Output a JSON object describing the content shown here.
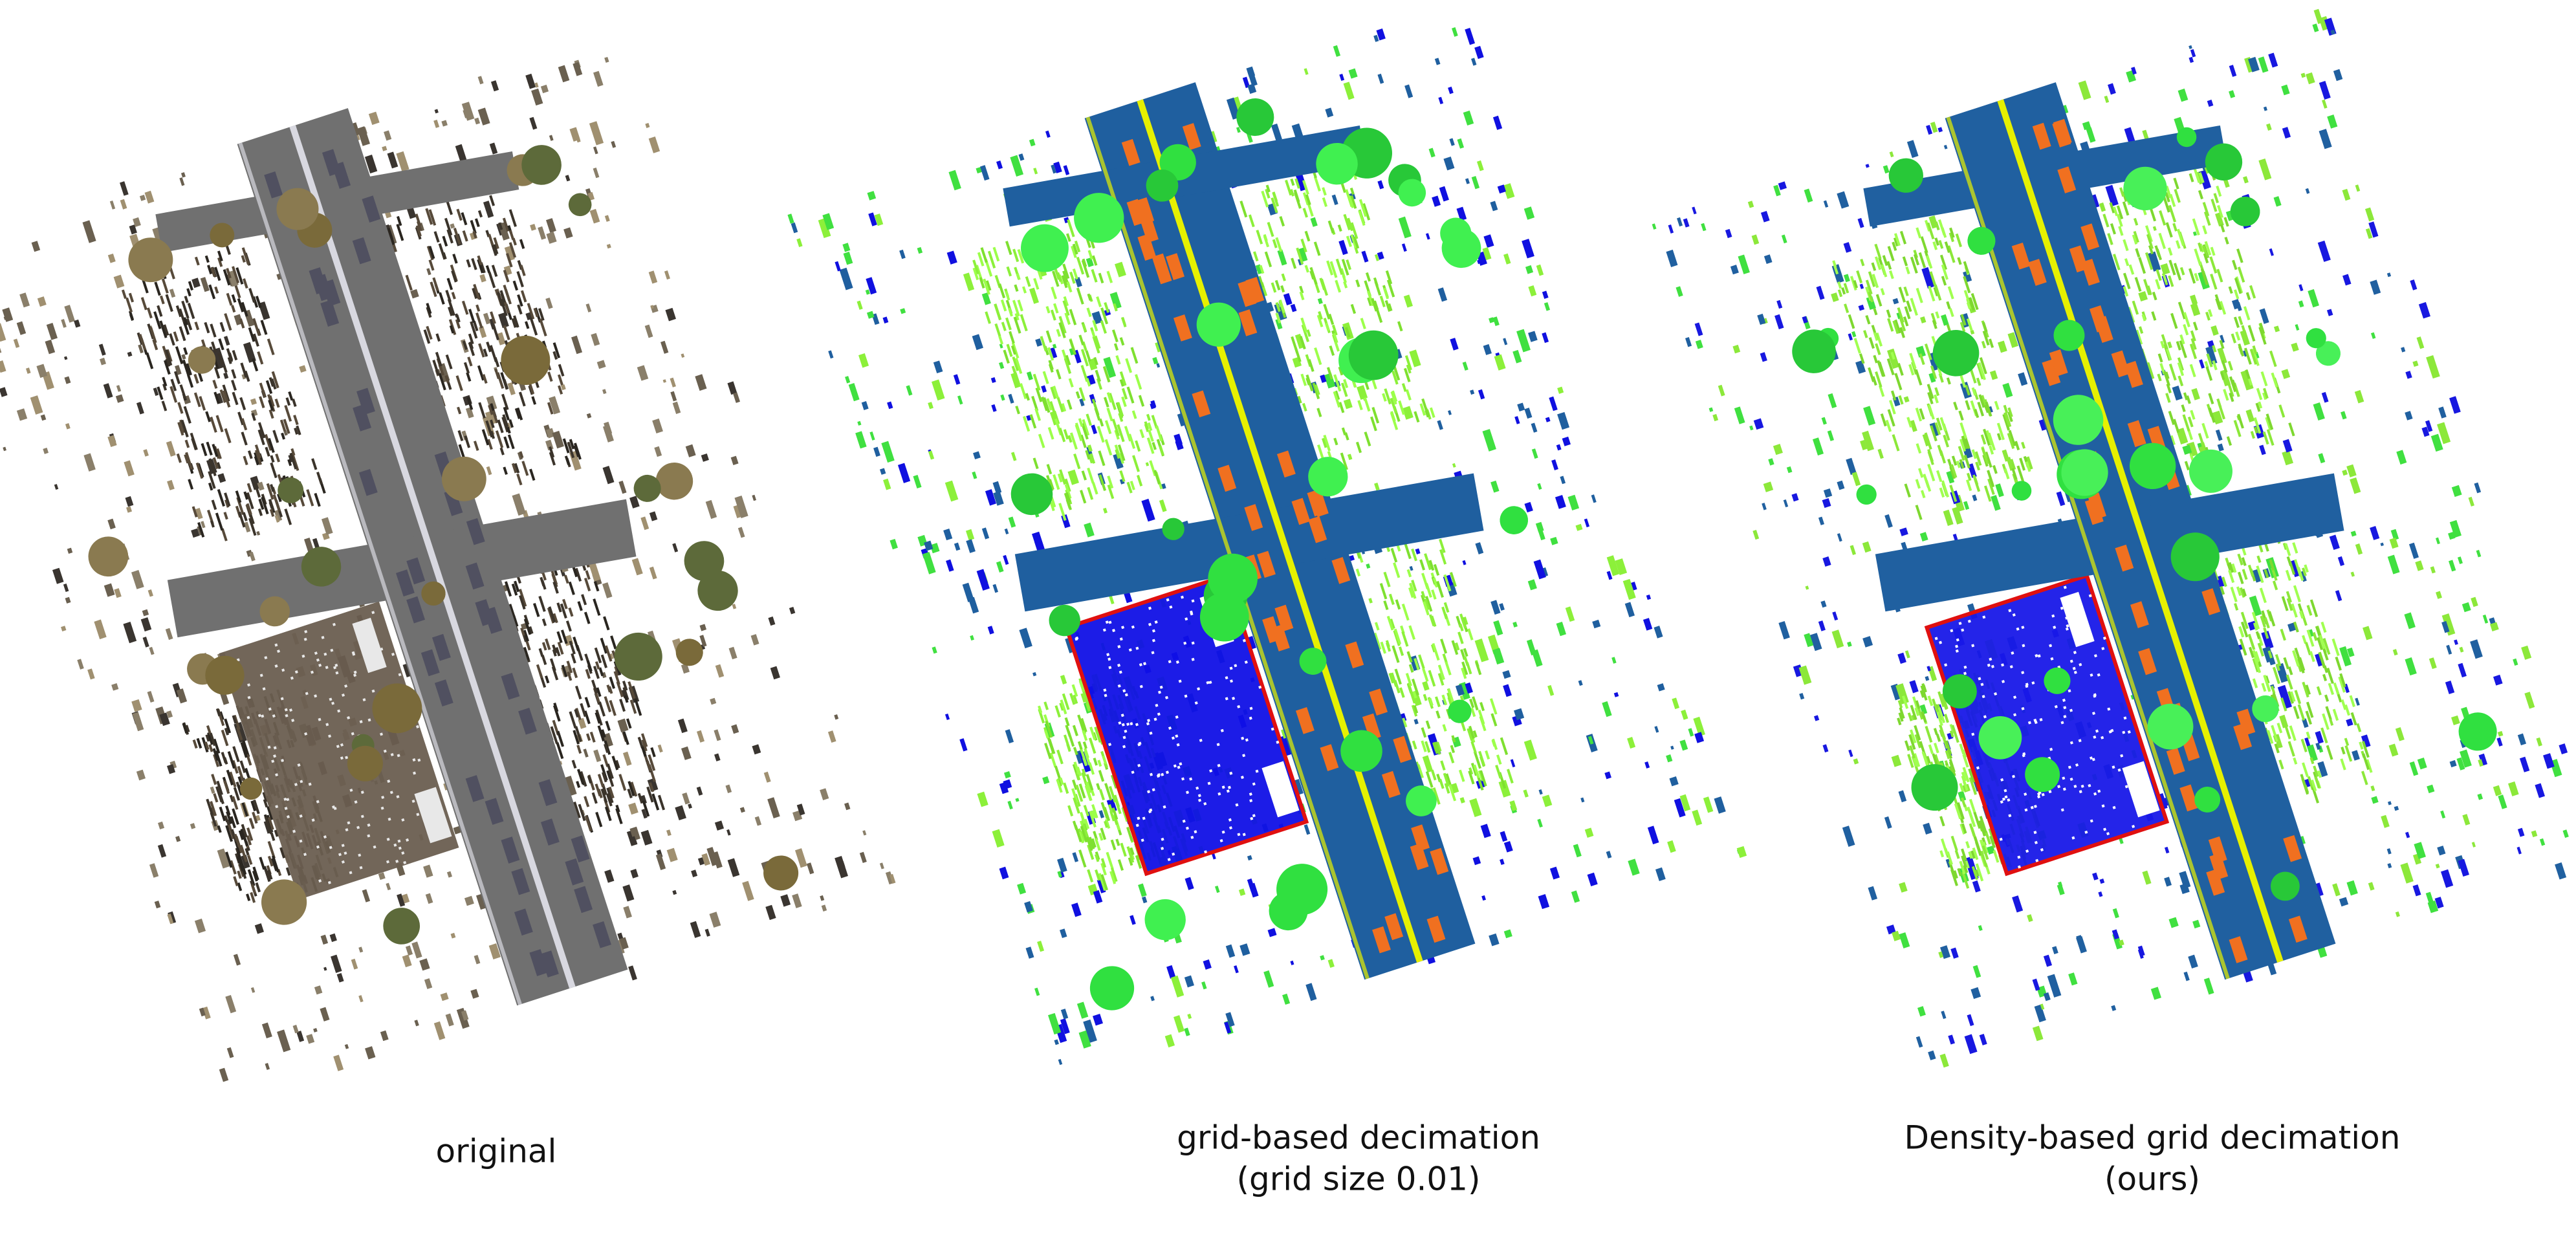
{
  "panels": [
    {
      "caption": [
        "original"
      ]
    },
    {
      "caption": [
        "grid-based decimation",
        "(grid size 0.01)"
      ]
    },
    {
      "caption": [
        "Density-based grid decimation",
        "(ours)"
      ]
    }
  ]
}
